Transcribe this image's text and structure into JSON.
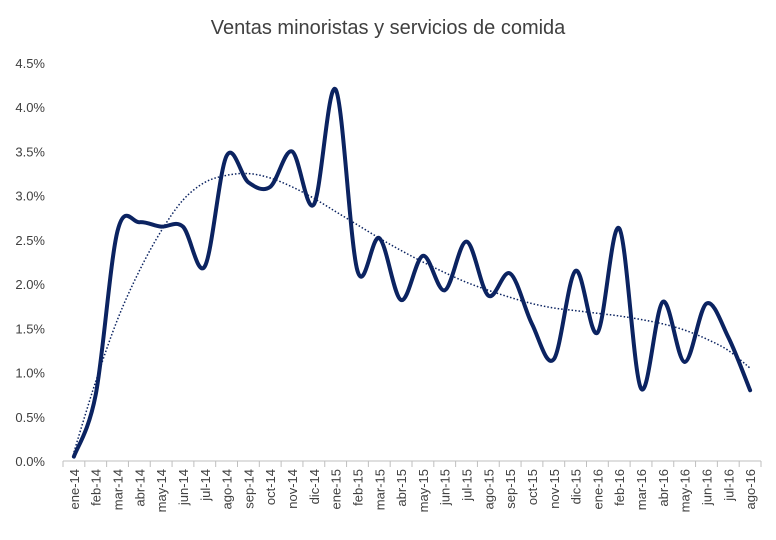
{
  "chart_data": {
    "type": "line",
    "title": "Ventas minoristas y servicios de comida",
    "categories": [
      "ene-14",
      "feb-14",
      "mar-14",
      "abr-14",
      "may-14",
      "jun-14",
      "jul-14",
      "ago-14",
      "sep-14",
      "oct-14",
      "nov-14",
      "dic-14",
      "ene-15",
      "feb-15",
      "mar-15",
      "abr-15",
      "may-15",
      "jun-15",
      "jul-15",
      "ago-15",
      "sep-15",
      "oct-15",
      "nov-15",
      "dic-15",
      "ene-16",
      "feb-16",
      "mar-16",
      "abr-16",
      "may-16",
      "jun-16",
      "jul-16",
      "ago-16"
    ],
    "series": [
      {
        "color": "#0b2361",
        "values": [
          0.05,
          0.75,
          2.6,
          2.7,
          2.65,
          2.65,
          2.2,
          3.45,
          3.15,
          3.1,
          3.5,
          2.9,
          4.2,
          2.15,
          2.52,
          1.82,
          2.32,
          1.93,
          2.48,
          1.87,
          2.12,
          1.55,
          1.15,
          2.15,
          1.45,
          2.63,
          0.82,
          1.8,
          1.12,
          1.78,
          1.4,
          0.8
        ]
      }
    ],
    "trendline": {
      "color": "#0b2361",
      "style": "dotted",
      "values": [
        0.1,
        0.9,
        1.6,
        2.15,
        2.6,
        2.95,
        3.15,
        3.23,
        3.25,
        3.2,
        3.1,
        2.97,
        2.82,
        2.67,
        2.52,
        2.38,
        2.25,
        2.13,
        2.02,
        1.93,
        1.85,
        1.78,
        1.73,
        1.7,
        1.67,
        1.64,
        1.6,
        1.55,
        1.48,
        1.38,
        1.25,
        1.05
      ]
    },
    "ylim": [
      0,
      4.5
    ],
    "yticks": [
      {
        "value": 0,
        "label": "0.0%"
      },
      {
        "value": 0.5,
        "label": "0.5%"
      },
      {
        "value": 1,
        "label": "1.0%"
      },
      {
        "value": 1.5,
        "label": "1.5%"
      },
      {
        "value": 2,
        "label": "2.0%"
      },
      {
        "value": 2.5,
        "label": "2.5%"
      },
      {
        "value": 3,
        "label": "3.0%"
      },
      {
        "value": 3.5,
        "label": "3.5%"
      },
      {
        "value": 4,
        "label": "4.0%"
      },
      {
        "value": 4.5,
        "label": "4.5%"
      }
    ],
    "grid": false
  }
}
